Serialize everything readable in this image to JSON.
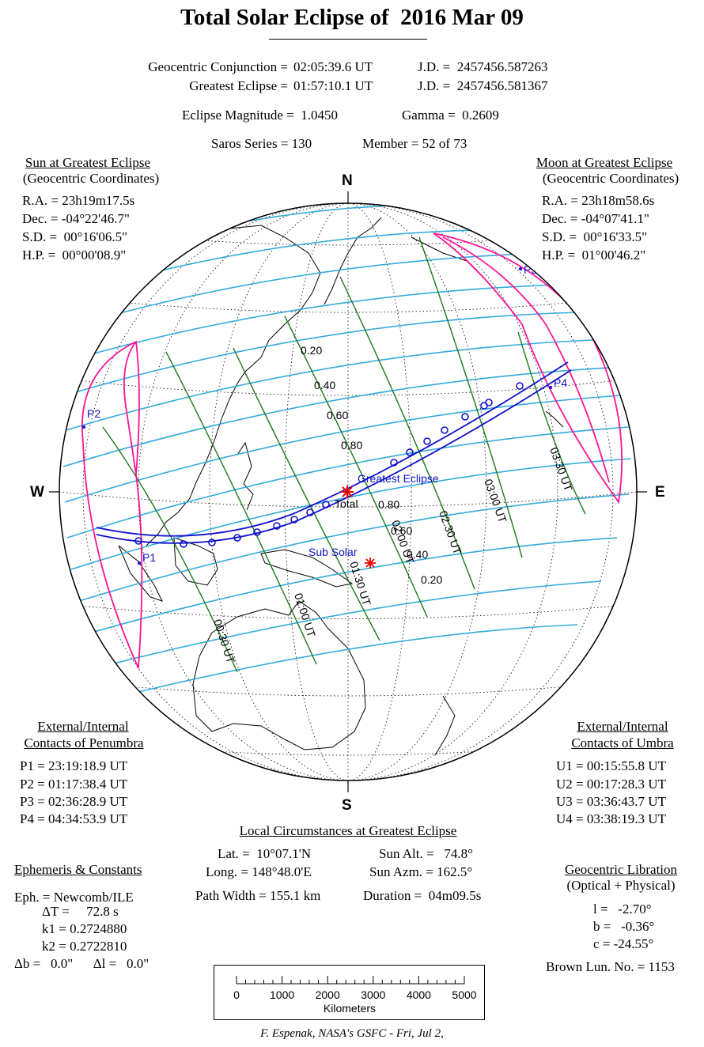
{
  "title": "Total Solar Eclipse of  2016 Mar 09",
  "header": {
    "conj_label": "Geocentric Conjunction =",
    "conj_time": "02:05:39.6 UT",
    "conj_jd": "J.D. =  2457456.587263",
    "ge_label": "Greatest Eclipse =",
    "ge_time": "01:57:10.1 UT",
    "ge_jd": "J.D. =  2457456.581367",
    "magnitude": "Eclipse Magnitude =  1.0450",
    "gamma": "Gamma =  0.2609",
    "saros": "Saros Series = 130",
    "member": "Member = 52 of 73"
  },
  "sun": {
    "title": "Sun at Greatest Eclipse",
    "subtitle": "(Geocentric Coordinates)",
    "lines": [
      "R.A. = 23h19m17.5s",
      "Dec. = -04°22'46.7\"",
      "S.D. =  00°16'06.5\"",
      "H.P. =  00°00'08.9\""
    ]
  },
  "moon": {
    "title": "Moon at Greatest Eclipse",
    "subtitle": "(Geocentric Coordinates)",
    "lines": [
      "R.A. = 23h18m58.6s",
      "Dec. = -04°07'41.1\"",
      "S.D. =  00°16'33.5\"",
      "H.P. =  01°00'46.2\""
    ]
  },
  "penumbra": {
    "title1": "External/Internal",
    "title2": "Contacts of Penumbra",
    "lines": [
      "P1 = 23:19:18.9 UT",
      "P2 = 01:17:38.4 UT",
      "P3 = 02:36:28.9 UT",
      "P4 = 04:34:53.9 UT"
    ]
  },
  "umbra": {
    "title1": "External/Internal",
    "title2": "Contacts of Umbra",
    "lines": [
      "U1 = 00:15:55.8 UT",
      "U2 = 00:17:28.3 UT",
      "U3 = 03:36:43.7 UT",
      "U4 = 03:38:19.3 UT"
    ]
  },
  "local": {
    "title": "Local Circumstances at Greatest Eclipse",
    "lat": "Lat. =  10°07.1'N",
    "long": "Long. = 148°48.0'E",
    "path_width": "Path Width = 155.1 km",
    "sun_alt": "Sun Alt. =   74.8°",
    "sun_azm": "Sun Azm. = 162.5°",
    "duration": "Duration =  04m09.5s"
  },
  "ephemeris": {
    "title": "Ephemeris & Constants",
    "lines": [
      "Eph. = Newcomb/ILE",
      "ΔT =     72.8 s",
      "k1 = 0.2724880",
      "k2 = 0.2722810",
      "Δb =   0.0\"      Δl =   0.0\""
    ]
  },
  "libration": {
    "title": "Geocentric Libration",
    "subtitle": "(Optical + Physical)",
    "lines": [
      "l =   -2.70°",
      "b =   -0.36°",
      "c = -24.55°"
    ],
    "brown": "Brown Lun. No. = 1153"
  },
  "compass": {
    "n": "N",
    "s": "S",
    "e": "E",
    "w": "W"
  },
  "map_labels": {
    "greatest": "Greatest Eclipse",
    "total": "Total",
    "subsolar": "Sub Solar",
    "p1": "P1",
    "p2": "P2",
    "p3": "P3",
    "p4": "P4",
    "mag_upper": [
      "0.20",
      "0.40",
      "0.60",
      "0.80"
    ],
    "mag_lower": [
      "0.80",
      "0.60",
      "0.40",
      "0.20"
    ],
    "times": [
      "00:30 UT",
      "01:00 UT",
      "01:30 UT",
      "02:00 UT",
      "02:30 UT",
      "03:00 UT",
      "03:30 UT"
    ]
  },
  "scale": {
    "ticks": [
      "0",
      "1000",
      "2000",
      "3000",
      "4000",
      "5000"
    ],
    "unit": "Kilometers"
  },
  "credit": "F. Espenak, NASA's GSFC - Fri, Jul 2,",
  "colors": {
    "penumbra_limits": "#ff1493",
    "magnitude_lines": "#33aadd",
    "time_lines": "#1a7a1a",
    "umbral_path": "#1010cc",
    "marker": "#ee0000",
    "coastline": "#000000"
  }
}
